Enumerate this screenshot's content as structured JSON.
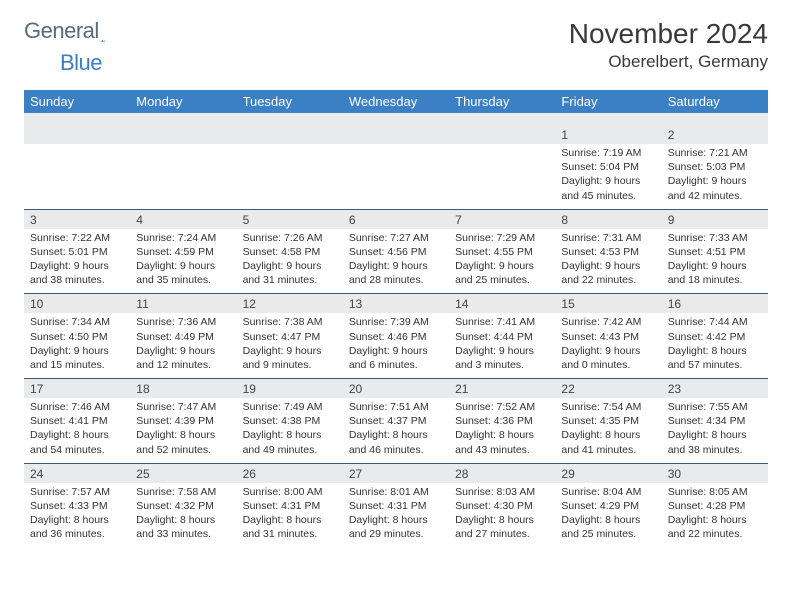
{
  "brand": {
    "word1": "General",
    "word2": "Blue"
  },
  "title": "November 2024",
  "location": "Oberelbert, Germany",
  "colors": {
    "header_bg": "#3b7fc4",
    "header_text": "#ffffff",
    "daynum_bg": "#e9eaec",
    "rule": "#3b5a7a",
    "page_bg": "#ffffff",
    "text": "#333333"
  },
  "day_headers": [
    "Sunday",
    "Monday",
    "Tuesday",
    "Wednesday",
    "Thursday",
    "Friday",
    "Saturday"
  ],
  "weeks": [
    {
      "nums": [
        "",
        "",
        "",
        "",
        "",
        "1",
        "2"
      ],
      "cells": [
        null,
        null,
        null,
        null,
        null,
        {
          "sunrise": "Sunrise: 7:19 AM",
          "sunset": "Sunset: 5:04 PM",
          "day1": "Daylight: 9 hours",
          "day2": "and 45 minutes."
        },
        {
          "sunrise": "Sunrise: 7:21 AM",
          "sunset": "Sunset: 5:03 PM",
          "day1": "Daylight: 9 hours",
          "day2": "and 42 minutes."
        }
      ]
    },
    {
      "nums": [
        "3",
        "4",
        "5",
        "6",
        "7",
        "8",
        "9"
      ],
      "cells": [
        {
          "sunrise": "Sunrise: 7:22 AM",
          "sunset": "Sunset: 5:01 PM",
          "day1": "Daylight: 9 hours",
          "day2": "and 38 minutes."
        },
        {
          "sunrise": "Sunrise: 7:24 AM",
          "sunset": "Sunset: 4:59 PM",
          "day1": "Daylight: 9 hours",
          "day2": "and 35 minutes."
        },
        {
          "sunrise": "Sunrise: 7:26 AM",
          "sunset": "Sunset: 4:58 PM",
          "day1": "Daylight: 9 hours",
          "day2": "and 31 minutes."
        },
        {
          "sunrise": "Sunrise: 7:27 AM",
          "sunset": "Sunset: 4:56 PM",
          "day1": "Daylight: 9 hours",
          "day2": "and 28 minutes."
        },
        {
          "sunrise": "Sunrise: 7:29 AM",
          "sunset": "Sunset: 4:55 PM",
          "day1": "Daylight: 9 hours",
          "day2": "and 25 minutes."
        },
        {
          "sunrise": "Sunrise: 7:31 AM",
          "sunset": "Sunset: 4:53 PM",
          "day1": "Daylight: 9 hours",
          "day2": "and 22 minutes."
        },
        {
          "sunrise": "Sunrise: 7:33 AM",
          "sunset": "Sunset: 4:51 PM",
          "day1": "Daylight: 9 hours",
          "day2": "and 18 minutes."
        }
      ]
    },
    {
      "nums": [
        "10",
        "11",
        "12",
        "13",
        "14",
        "15",
        "16"
      ],
      "cells": [
        {
          "sunrise": "Sunrise: 7:34 AM",
          "sunset": "Sunset: 4:50 PM",
          "day1": "Daylight: 9 hours",
          "day2": "and 15 minutes."
        },
        {
          "sunrise": "Sunrise: 7:36 AM",
          "sunset": "Sunset: 4:49 PM",
          "day1": "Daylight: 9 hours",
          "day2": "and 12 minutes."
        },
        {
          "sunrise": "Sunrise: 7:38 AM",
          "sunset": "Sunset: 4:47 PM",
          "day1": "Daylight: 9 hours",
          "day2": "and 9 minutes."
        },
        {
          "sunrise": "Sunrise: 7:39 AM",
          "sunset": "Sunset: 4:46 PM",
          "day1": "Daylight: 9 hours",
          "day2": "and 6 minutes."
        },
        {
          "sunrise": "Sunrise: 7:41 AM",
          "sunset": "Sunset: 4:44 PM",
          "day1": "Daylight: 9 hours",
          "day2": "and 3 minutes."
        },
        {
          "sunrise": "Sunrise: 7:42 AM",
          "sunset": "Sunset: 4:43 PM",
          "day1": "Daylight: 9 hours",
          "day2": "and 0 minutes."
        },
        {
          "sunrise": "Sunrise: 7:44 AM",
          "sunset": "Sunset: 4:42 PM",
          "day1": "Daylight: 8 hours",
          "day2": "and 57 minutes."
        }
      ]
    },
    {
      "nums": [
        "17",
        "18",
        "19",
        "20",
        "21",
        "22",
        "23"
      ],
      "cells": [
        {
          "sunrise": "Sunrise: 7:46 AM",
          "sunset": "Sunset: 4:41 PM",
          "day1": "Daylight: 8 hours",
          "day2": "and 54 minutes."
        },
        {
          "sunrise": "Sunrise: 7:47 AM",
          "sunset": "Sunset: 4:39 PM",
          "day1": "Daylight: 8 hours",
          "day2": "and 52 minutes."
        },
        {
          "sunrise": "Sunrise: 7:49 AM",
          "sunset": "Sunset: 4:38 PM",
          "day1": "Daylight: 8 hours",
          "day2": "and 49 minutes."
        },
        {
          "sunrise": "Sunrise: 7:51 AM",
          "sunset": "Sunset: 4:37 PM",
          "day1": "Daylight: 8 hours",
          "day2": "and 46 minutes."
        },
        {
          "sunrise": "Sunrise: 7:52 AM",
          "sunset": "Sunset: 4:36 PM",
          "day1": "Daylight: 8 hours",
          "day2": "and 43 minutes."
        },
        {
          "sunrise": "Sunrise: 7:54 AM",
          "sunset": "Sunset: 4:35 PM",
          "day1": "Daylight: 8 hours",
          "day2": "and 41 minutes."
        },
        {
          "sunrise": "Sunrise: 7:55 AM",
          "sunset": "Sunset: 4:34 PM",
          "day1": "Daylight: 8 hours",
          "day2": "and 38 minutes."
        }
      ]
    },
    {
      "nums": [
        "24",
        "25",
        "26",
        "27",
        "28",
        "29",
        "30"
      ],
      "cells": [
        {
          "sunrise": "Sunrise: 7:57 AM",
          "sunset": "Sunset: 4:33 PM",
          "day1": "Daylight: 8 hours",
          "day2": "and 36 minutes."
        },
        {
          "sunrise": "Sunrise: 7:58 AM",
          "sunset": "Sunset: 4:32 PM",
          "day1": "Daylight: 8 hours",
          "day2": "and 33 minutes."
        },
        {
          "sunrise": "Sunrise: 8:00 AM",
          "sunset": "Sunset: 4:31 PM",
          "day1": "Daylight: 8 hours",
          "day2": "and 31 minutes."
        },
        {
          "sunrise": "Sunrise: 8:01 AM",
          "sunset": "Sunset: 4:31 PM",
          "day1": "Daylight: 8 hours",
          "day2": "and 29 minutes."
        },
        {
          "sunrise": "Sunrise: 8:03 AM",
          "sunset": "Sunset: 4:30 PM",
          "day1": "Daylight: 8 hours",
          "day2": "and 27 minutes."
        },
        {
          "sunrise": "Sunrise: 8:04 AM",
          "sunset": "Sunset: 4:29 PM",
          "day1": "Daylight: 8 hours",
          "day2": "and 25 minutes."
        },
        {
          "sunrise": "Sunrise: 8:05 AM",
          "sunset": "Sunset: 4:28 PM",
          "day1": "Daylight: 8 hours",
          "day2": "and 22 minutes."
        }
      ]
    }
  ]
}
